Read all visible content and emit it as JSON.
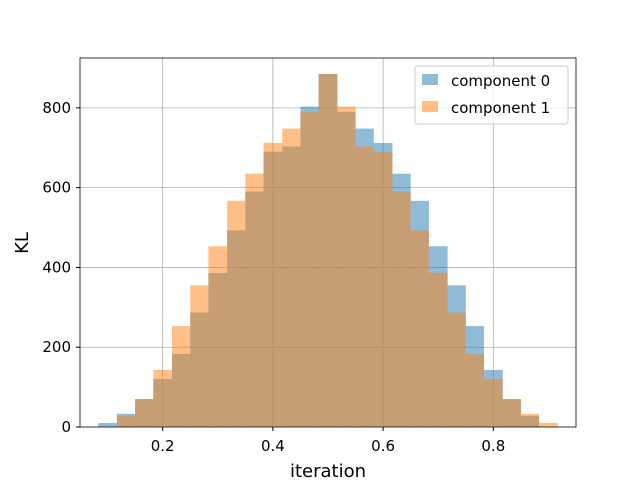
{
  "chart_data": {
    "type": "histogram",
    "xlabel": "iteration",
    "ylabel": "KL",
    "xlim": [
      0.05,
      0.95
    ],
    "ylim": [
      0,
      925
    ],
    "xticks": [
      0.2,
      0.4,
      0.6,
      0.8
    ],
    "xtick_labels": [
      "0.2",
      "0.4",
      "0.6",
      "0.8"
    ],
    "yticks": [
      0,
      200,
      400,
      600,
      800
    ],
    "ytick_labels": [
      "0",
      "200",
      "400",
      "600",
      "800"
    ],
    "grid": true,
    "legend_position": "top-right",
    "series": [
      {
        "name": "component 0",
        "color": "#1f77b4",
        "opacity": 0.5,
        "bins": [
          {
            "start": 0.083,
            "end": 0.117,
            "count": 10
          },
          {
            "start": 0.117,
            "end": 0.15,
            "count": 33
          },
          {
            "start": 0.15,
            "end": 0.183,
            "count": 70
          },
          {
            "start": 0.183,
            "end": 0.217,
            "count": 120
          },
          {
            "start": 0.217,
            "end": 0.25,
            "count": 183
          },
          {
            "start": 0.25,
            "end": 0.283,
            "count": 287
          },
          {
            "start": 0.283,
            "end": 0.317,
            "count": 386
          },
          {
            "start": 0.317,
            "end": 0.35,
            "count": 493
          },
          {
            "start": 0.35,
            "end": 0.383,
            "count": 590
          },
          {
            "start": 0.383,
            "end": 0.417,
            "count": 690
          },
          {
            "start": 0.417,
            "end": 0.45,
            "count": 703
          },
          {
            "start": 0.45,
            "end": 0.483,
            "count": 803
          },
          {
            "start": 0.483,
            "end": 0.517,
            "count": 885
          },
          {
            "start": 0.517,
            "end": 0.55,
            "count": 790
          },
          {
            "start": 0.55,
            "end": 0.583,
            "count": 748
          },
          {
            "start": 0.583,
            "end": 0.617,
            "count": 712
          },
          {
            "start": 0.617,
            "end": 0.65,
            "count": 635
          },
          {
            "start": 0.65,
            "end": 0.683,
            "count": 567
          },
          {
            "start": 0.683,
            "end": 0.717,
            "count": 453
          },
          {
            "start": 0.717,
            "end": 0.75,
            "count": 355
          },
          {
            "start": 0.75,
            "end": 0.783,
            "count": 253
          },
          {
            "start": 0.783,
            "end": 0.817,
            "count": 143
          },
          {
            "start": 0.817,
            "end": 0.85,
            "count": 70
          },
          {
            "start": 0.85,
            "end": 0.883,
            "count": 28
          }
        ]
      },
      {
        "name": "component 1",
        "color": "#ff7f0e",
        "opacity": 0.5,
        "bins": [
          {
            "start": 0.117,
            "end": 0.15,
            "count": 28
          },
          {
            "start": 0.15,
            "end": 0.183,
            "count": 70
          },
          {
            "start": 0.183,
            "end": 0.217,
            "count": 143
          },
          {
            "start": 0.217,
            "end": 0.25,
            "count": 253
          },
          {
            "start": 0.25,
            "end": 0.283,
            "count": 355
          },
          {
            "start": 0.283,
            "end": 0.317,
            "count": 453
          },
          {
            "start": 0.317,
            "end": 0.35,
            "count": 567
          },
          {
            "start": 0.35,
            "end": 0.383,
            "count": 635
          },
          {
            "start": 0.383,
            "end": 0.417,
            "count": 712
          },
          {
            "start": 0.417,
            "end": 0.45,
            "count": 748
          },
          {
            "start": 0.45,
            "end": 0.483,
            "count": 790
          },
          {
            "start": 0.483,
            "end": 0.517,
            "count": 885
          },
          {
            "start": 0.517,
            "end": 0.55,
            "count": 803
          },
          {
            "start": 0.55,
            "end": 0.583,
            "count": 703
          },
          {
            "start": 0.583,
            "end": 0.617,
            "count": 690
          },
          {
            "start": 0.617,
            "end": 0.65,
            "count": 590
          },
          {
            "start": 0.65,
            "end": 0.683,
            "count": 493
          },
          {
            "start": 0.683,
            "end": 0.717,
            "count": 386
          },
          {
            "start": 0.717,
            "end": 0.75,
            "count": 287
          },
          {
            "start": 0.75,
            "end": 0.783,
            "count": 183
          },
          {
            "start": 0.783,
            "end": 0.817,
            "count": 120
          },
          {
            "start": 0.817,
            "end": 0.85,
            "count": 70
          },
          {
            "start": 0.85,
            "end": 0.883,
            "count": 33
          },
          {
            "start": 0.883,
            "end": 0.917,
            "count": 10
          }
        ]
      }
    ]
  }
}
